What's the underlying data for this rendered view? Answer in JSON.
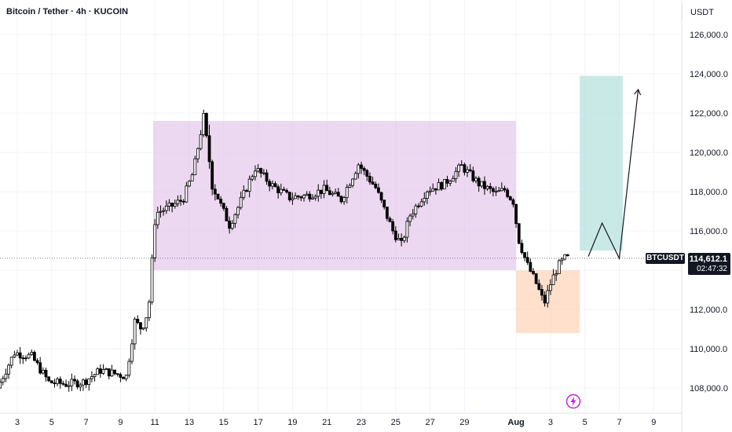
{
  "header": {
    "title": "Bitcoin / Tether · 4h · KUCOIN",
    "currency": "USDT"
  },
  "price_label": {
    "symbol": "BTCUSDT",
    "price": "114,612.1",
    "countdown": "02:47:32"
  },
  "colors": {
    "up_candle": "#ffffff",
    "down_candle": "#000000",
    "range_box": "#e1bee7",
    "demand_box": "#ffccaa",
    "target_box": "#b2dfdb",
    "price_line": "#787b86",
    "bolt_icon": "#c026d3"
  },
  "chart_data": {
    "type": "candlestick",
    "symbol": "Bitcoin / Tether",
    "interval": "4h",
    "exchange": "KUCOIN",
    "y_axis": {
      "ticks": [
        "108,000.0",
        "110,000.0",
        "112,000.0",
        "114,000.0",
        "116,000.0",
        "118,000.0",
        "120,000.0",
        "122,000.0",
        "124,000.0",
        "126,000.0"
      ],
      "range": [
        106800,
        127200
      ]
    },
    "x_axis": {
      "ticks": [
        "3",
        "5",
        "7",
        "9",
        "11",
        "13",
        "15",
        "17",
        "19",
        "21",
        "23",
        "25",
        "27",
        "29",
        "Aug",
        "3",
        "5",
        "7",
        "9"
      ]
    },
    "last_price": 114612.1,
    "range_box": {
      "start": "Jul 11",
      "end": "Aug 1",
      "top": 121600,
      "bottom": 114000
    },
    "demand_box": {
      "start": "Aug 1",
      "end": "Aug 4",
      "top": 114000,
      "bottom": 110800
    },
    "target_box": {
      "start": "Aug 4",
      "end": "Aug 7",
      "top": 123900,
      "bottom": 115000
    },
    "projection_path": [
      {
        "date": "Aug 4.3",
        "price": 114700
      },
      {
        "date": "Aug 5",
        "price": 116400
      },
      {
        "date": "Aug 6",
        "price": 114600
      },
      {
        "date": "Aug 7",
        "price": 123200
      }
    ],
    "candles_summary": [
      {
        "period": "Jul 2-10",
        "low": 107000,
        "high": 110800
      },
      {
        "period": "Jul 10-11",
        "low": 111000,
        "high": 118000
      },
      {
        "period": "Jul 14",
        "high": 123300
      },
      {
        "period": "Jul 15-31",
        "low": 114400,
        "high": 120500
      },
      {
        "period": "Aug 1-3",
        "low": 111900,
        "high": 115800
      },
      {
        "period": "Aug 4",
        "close": 114612.1
      }
    ]
  }
}
